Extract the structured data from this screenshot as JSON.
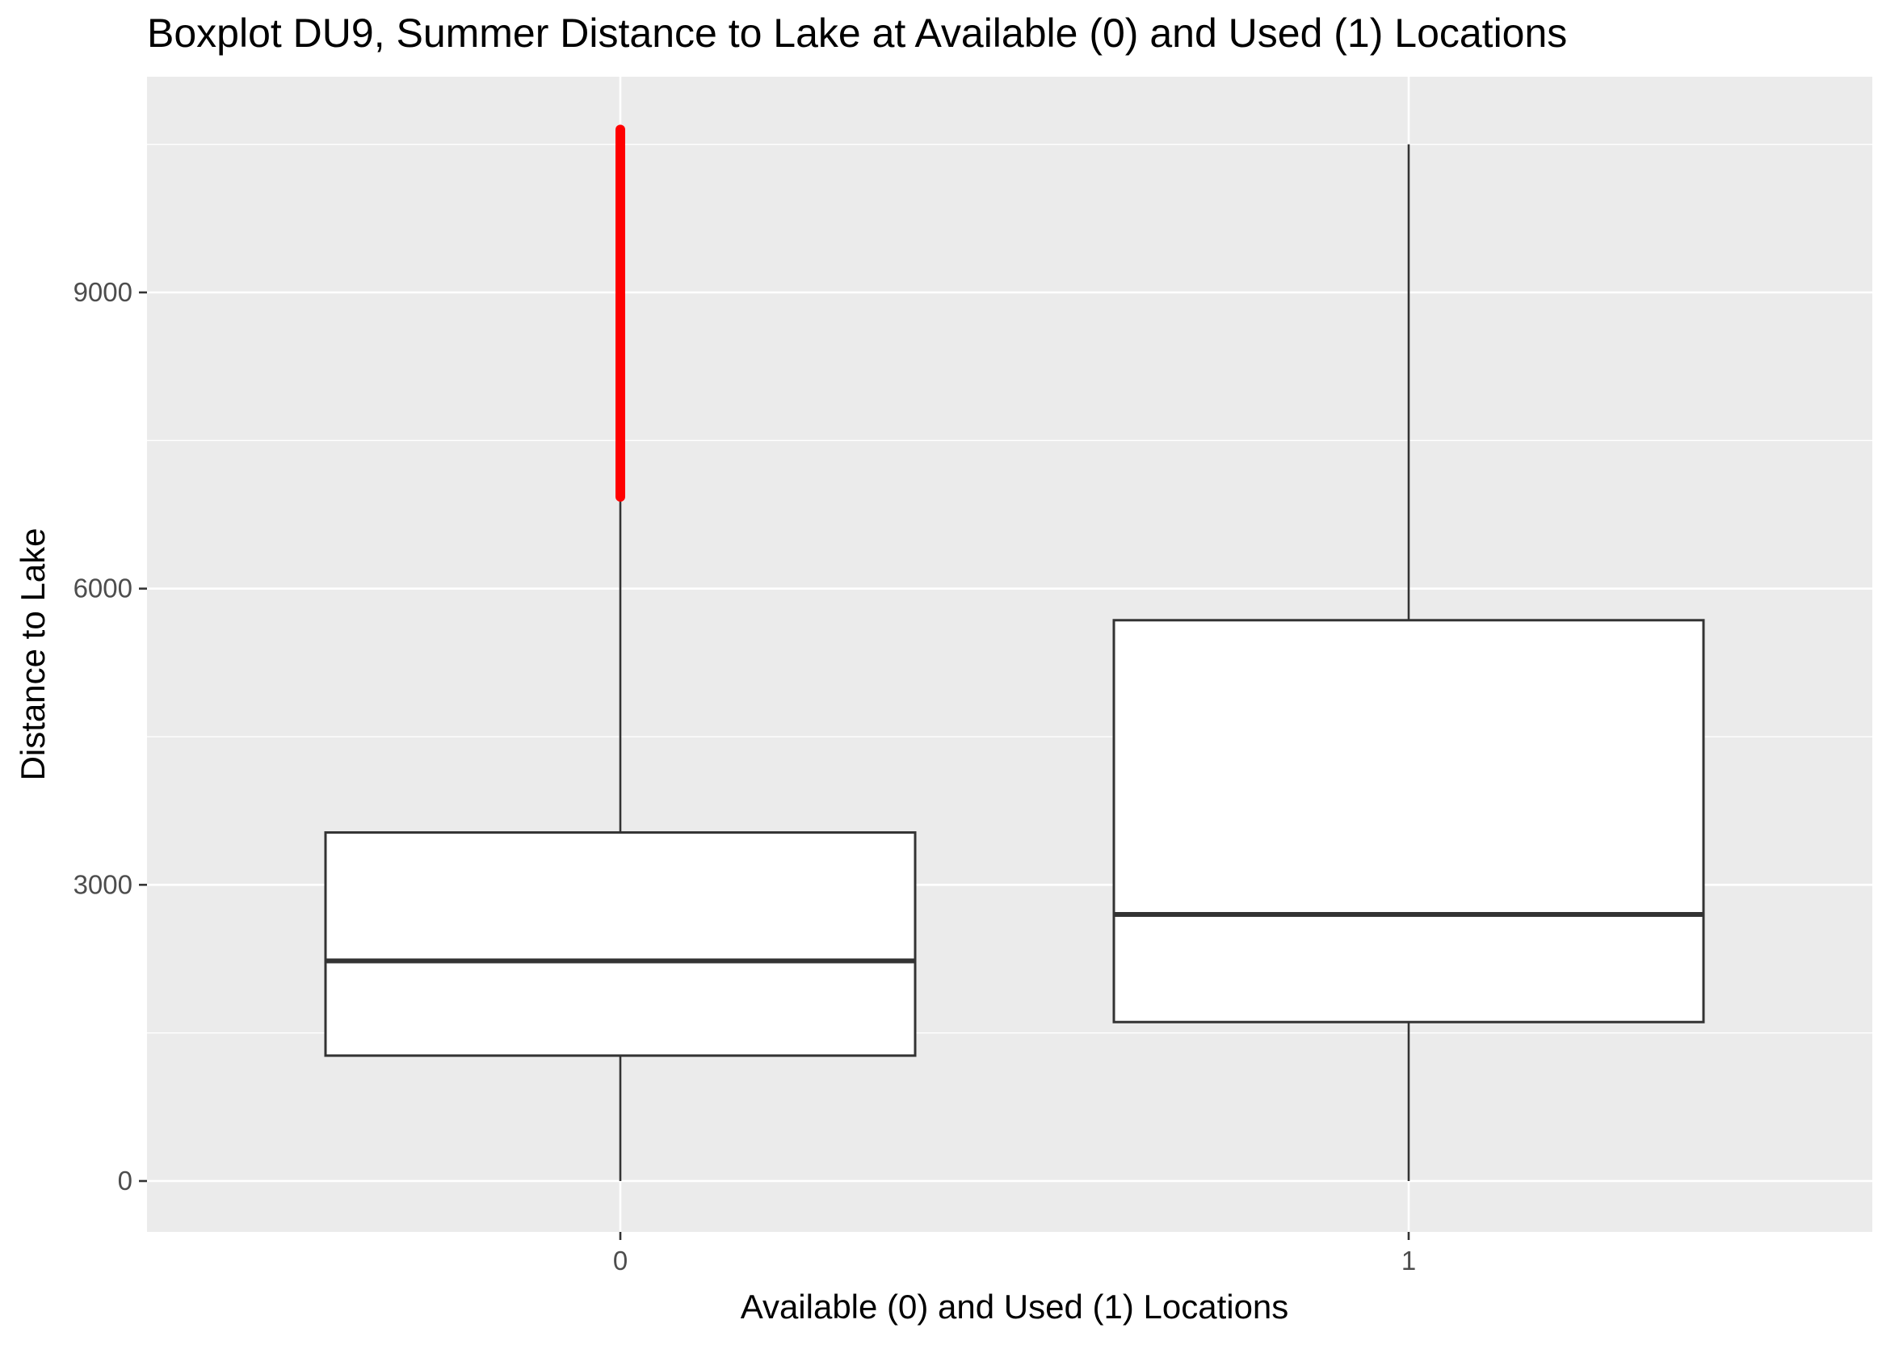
{
  "chart_data": {
    "type": "box",
    "title": "Boxplot DU9, Summer Distance to Lake at Available (0) and Used (1) Locations",
    "xlabel": "Available (0) and Used (1) Locations",
    "ylabel": "Distance to Lake",
    "categories": [
      "0",
      "1"
    ],
    "ylim": [
      -550,
      11250
    ],
    "y_ticks": [
      0,
      3000,
      6000,
      9000
    ],
    "grid": true,
    "boxes": [
      {
        "category": "0",
        "whisker_low": 0,
        "q1": 1270,
        "median": 2230,
        "q3": 3530,
        "whisker_high": 6930,
        "outliers_range": [
          6930,
          10650
        ],
        "outlier_color": "#ff0000"
      },
      {
        "category": "1",
        "whisker_low": 0,
        "q1": 1610,
        "median": 2700,
        "q3": 5680,
        "whisker_high": 10500,
        "outliers_range": null,
        "outlier_color": "#ff0000"
      }
    ],
    "colors": {
      "panel": "#ebebeb",
      "grid": "#ffffff",
      "box_fill": "#ffffff",
      "box_line": "#333333",
      "outlier": "#ff0000"
    }
  }
}
